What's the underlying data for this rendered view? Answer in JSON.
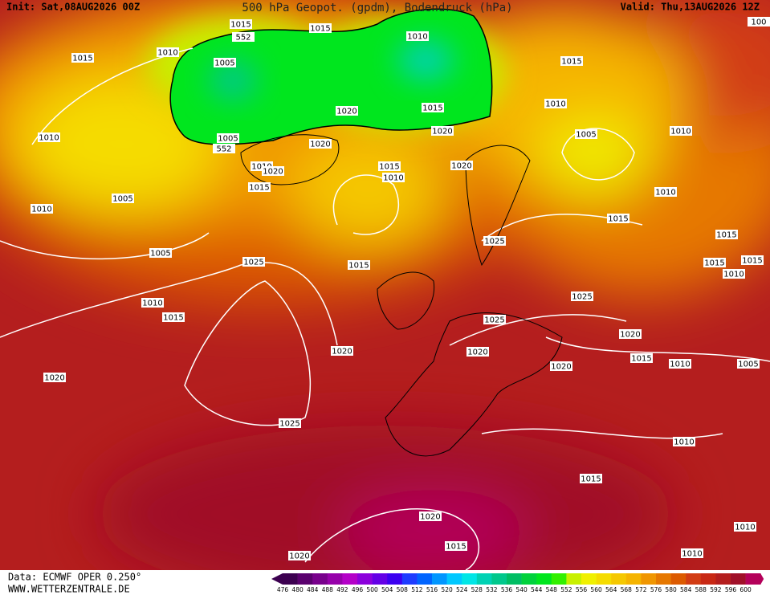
{
  "header": {
    "init": "Init: Sat,08AUG2026 00Z",
    "title": "500 hPa Geopot. (gpdm), Bodendruck (hPa)",
    "valid": "Valid: Thu,13AUG2026 12Z"
  },
  "footer": {
    "source": "Data: ECMWF OPER 0.250°",
    "site": "WWW.WETTERZENTRALE.DE"
  },
  "colorbar": {
    "levels": [
      476,
      480,
      484,
      488,
      492,
      496,
      500,
      504,
      508,
      512,
      516,
      520,
      524,
      528,
      532,
      536,
      540,
      544,
      548,
      552,
      556,
      560,
      564,
      568,
      572,
      576,
      580,
      584,
      588,
      592,
      596,
      600
    ],
    "colors": [
      "#3c0050",
      "#5a006e",
      "#78008c",
      "#9600aa",
      "#b400c8",
      "#8c00dc",
      "#6400e6",
      "#3c00f0",
      "#1e3cff",
      "#0064ff",
      "#0096ff",
      "#00c8ff",
      "#00e6e6",
      "#00d2b4",
      "#00c88c",
      "#00be64",
      "#00d23c",
      "#00e61e",
      "#32f000",
      "#c8f000",
      "#f0f000",
      "#f5dc00",
      "#f5c800",
      "#f5b400",
      "#f09600",
      "#e67800",
      "#dc5a00",
      "#d23c14",
      "#c82814",
      "#b41e1e",
      "#a00f28",
      "#b4005a"
    ]
  },
  "isobar_labels": [
    1015,
    552,
    1015,
    1010,
    1010,
    1015,
    1005,
    1015,
    1010,
    1015,
    1020,
    1020,
    1010,
    1005,
    552,
    1020,
    1005,
    1010,
    1010,
    1020,
    1015,
    1010,
    1020,
    1015,
    1005,
    1010,
    1010,
    1015,
    1015,
    1025,
    1005,
    1025,
    1015,
    1015,
    1015,
    1010,
    1025,
    1010,
    1015,
    1025,
    1020,
    1020,
    1020,
    1015,
    1020,
    1010,
    1005,
    1020,
    1025,
    1010,
    1015,
    1020,
    1010,
    1015,
    1010,
    1020,
    100
  ]
}
